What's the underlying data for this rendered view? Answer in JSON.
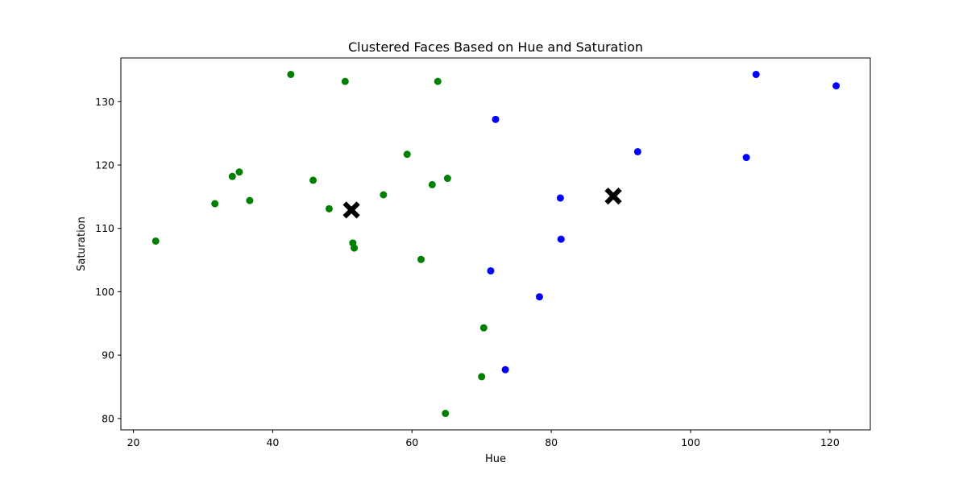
{
  "chart_data": {
    "type": "scatter",
    "title": "Clustered Faces Based on Hue and Saturation",
    "xlabel": "Hue",
    "ylabel": "Saturation",
    "xlim": [
      18.2,
      125.8
    ],
    "ylim": [
      78.2,
      136.9
    ],
    "xticks": [
      20,
      40,
      60,
      80,
      100,
      120
    ],
    "yticks": [
      80,
      90,
      100,
      110,
      120,
      130
    ],
    "grid": false,
    "series": [
      {
        "color": "#008000",
        "marker": "circle",
        "points": [
          [
            23.2,
            108.0
          ],
          [
            31.7,
            113.9
          ],
          [
            34.2,
            118.2
          ],
          [
            35.2,
            118.9
          ],
          [
            36.7,
            114.4
          ],
          [
            42.6,
            134.3
          ],
          [
            45.8,
            117.6
          ],
          [
            48.1,
            113.1
          ],
          [
            50.4,
            133.2
          ],
          [
            51.5,
            107.7
          ],
          [
            51.7,
            106.9
          ],
          [
            55.9,
            115.3
          ],
          [
            59.3,
            121.7
          ],
          [
            61.3,
            105.1
          ],
          [
            62.9,
            116.9
          ],
          [
            63.7,
            133.2
          ],
          [
            65.1,
            117.9
          ],
          [
            64.8,
            80.8
          ],
          [
            70.0,
            86.6
          ],
          [
            70.3,
            94.3
          ]
        ]
      },
      {
        "color": "#0000ff",
        "marker": "circle",
        "points": [
          [
            72.0,
            127.2
          ],
          [
            71.3,
            103.3
          ],
          [
            73.4,
            87.7
          ],
          [
            78.3,
            99.2
          ],
          [
            81.3,
            114.8
          ],
          [
            81.4,
            108.3
          ],
          [
            92.4,
            122.1
          ],
          [
            108.0,
            121.2
          ],
          [
            109.4,
            134.3
          ],
          [
            120.9,
            132.5
          ]
        ]
      },
      {
        "color": "#000000",
        "marker": "x",
        "points": [
          [
            51.3,
            112.9
          ],
          [
            88.9,
            115.1
          ]
        ]
      }
    ]
  }
}
